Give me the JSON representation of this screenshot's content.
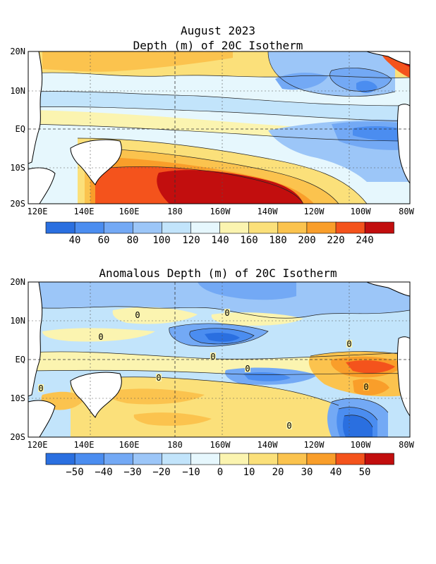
{
  "header": {
    "month_title": "August 2023"
  },
  "panels": [
    {
      "title": "Depth (m) of 20C Isotherm",
      "lat_labels": [
        "20N",
        "10N",
        "EQ",
        "10S",
        "20S"
      ],
      "lon_labels": [
        "120E",
        "140E",
        "160E",
        "180",
        "160W",
        "140W",
        "120W",
        "100W",
        "80W"
      ],
      "colorbar_labels": [
        "40",
        "60",
        "80",
        "100",
        "120",
        "140",
        "160",
        "180",
        "200",
        "220",
        "240"
      ],
      "colorbar_colors": [
        "#2a6fe0",
        "#4b8df0",
        "#73a9f5",
        "#9cc6f8",
        "#c2e4fb",
        "#e6f7fd",
        "#fbf4b0",
        "#fbe07a",
        "#fbc34e",
        "#f99e2a",
        "#f4531c",
        "#c20e0e"
      ],
      "contour_label": ""
    },
    {
      "title": "Anomalous Depth (m) of 20C Isotherm",
      "lat_labels": [
        "20N",
        "10N",
        "EQ",
        "10S",
        "20S"
      ],
      "lon_labels": [
        "120E",
        "140E",
        "160E",
        "180",
        "160W",
        "140W",
        "120W",
        "100W",
        "80W"
      ],
      "colorbar_labels": [
        "−50",
        "−40",
        "−30",
        "−20",
        "−10",
        "0",
        "10",
        "20",
        "30",
        "40",
        "50"
      ],
      "colorbar_colors": [
        "#2a6fe0",
        "#4b8df0",
        "#73a9f5",
        "#9cc6f8",
        "#c2e4fb",
        "#e6f7fd",
        "#fbf4b0",
        "#fbe07a",
        "#fbc34e",
        "#f99e2a",
        "#f4531c",
        "#c20e0e"
      ],
      "contour_label": "0"
    }
  ]
}
